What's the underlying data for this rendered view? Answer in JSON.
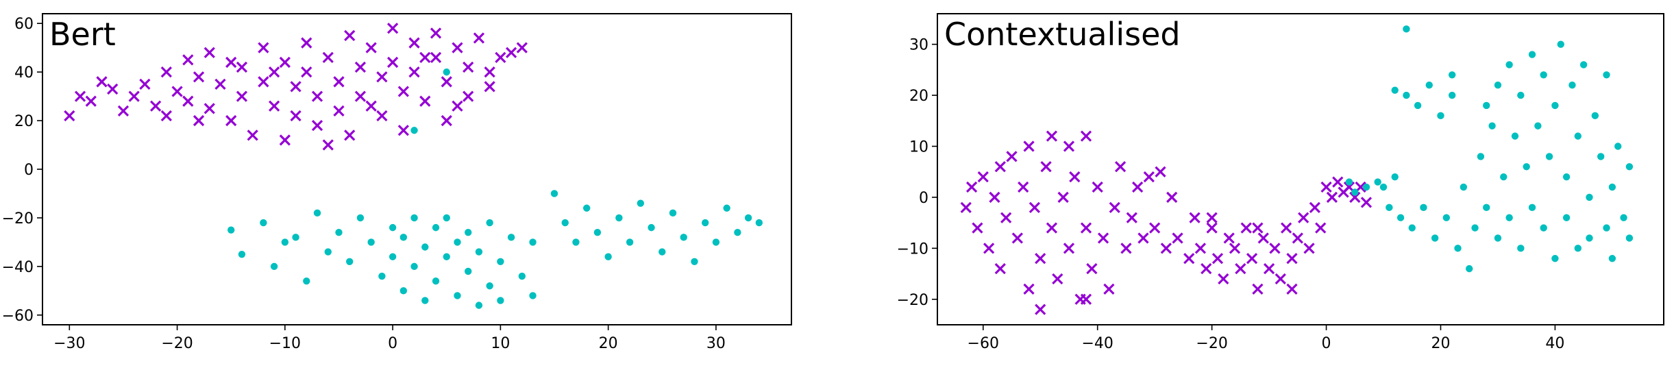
{
  "colors": {
    "class_a": "#9400D3",
    "class_b": "#00BFBF"
  },
  "chart_data": [
    {
      "type": "scatter",
      "title": "Bert",
      "xlabel": "",
      "ylabel": "",
      "xlim": [
        -32.5,
        37
      ],
      "ylim": [
        -64,
        64
      ],
      "xticks": [
        -30,
        -20,
        -10,
        0,
        10,
        20,
        30
      ],
      "yticks": [
        -60,
        -40,
        -20,
        0,
        20,
        40,
        60
      ],
      "xtick_labels": [
        "−30",
        "−20",
        "−10",
        "0",
        "10",
        "20",
        "30"
      ],
      "ytick_labels": [
        "−60",
        "−40",
        "−20",
        "0",
        "20",
        "40",
        "60"
      ],
      "legend": "none",
      "grid": false,
      "series": [
        {
          "marker": "x",
          "color": "#9400D3",
          "points": [
            [
              -30,
              22
            ],
            [
              -29,
              30
            ],
            [
              -28,
              28
            ],
            [
              -27,
              36
            ],
            [
              -25,
              24
            ],
            [
              -24,
              30
            ],
            [
              -23,
              35
            ],
            [
              -22,
              26
            ],
            [
              -21,
              40
            ],
            [
              -21,
              22
            ],
            [
              -20,
              32
            ],
            [
              -19,
              45
            ],
            [
              -19,
              28
            ],
            [
              -18,
              38
            ],
            [
              -17,
              48
            ],
            [
              -17,
              25
            ],
            [
              -16,
              35
            ],
            [
              -15,
              20
            ],
            [
              -14,
              42
            ],
            [
              -14,
              30
            ],
            [
              -13,
              14
            ],
            [
              -12,
              50
            ],
            [
              -12,
              36
            ],
            [
              -11,
              26
            ],
            [
              -10,
              44
            ],
            [
              -10,
              12
            ],
            [
              -9,
              34
            ],
            [
              -9,
              22
            ],
            [
              -8,
              52
            ],
            [
              -8,
              40
            ],
            [
              -7,
              30
            ],
            [
              -7,
              18
            ],
            [
              -6,
              46
            ],
            [
              -5,
              36
            ],
            [
              -5,
              24
            ],
            [
              -4,
              55
            ],
            [
              -4,
              14
            ],
            [
              -3,
              42
            ],
            [
              -3,
              30
            ],
            [
              -2,
              50
            ],
            [
              -1,
              38
            ],
            [
              -1,
              22
            ],
            [
              0,
              58
            ],
            [
              0,
              44
            ],
            [
              1,
              32
            ],
            [
              1,
              16
            ],
            [
              2,
              52
            ],
            [
              2,
              40
            ],
            [
              3,
              28
            ],
            [
              4,
              56
            ],
            [
              4,
              46
            ],
            [
              5,
              36
            ],
            [
              5,
              20
            ],
            [
              6,
              50
            ],
            [
              7,
              42
            ],
            [
              7,
              30
            ],
            [
              8,
              54
            ],
            [
              9,
              40
            ],
            [
              10,
              46
            ],
            [
              11,
              48
            ],
            [
              12,
              50
            ],
            [
              -26,
              33
            ],
            [
              -18,
              20
            ],
            [
              -11,
              40
            ],
            [
              -2,
              26
            ],
            [
              3,
              46
            ],
            [
              6,
              26
            ],
            [
              9,
              34
            ],
            [
              -15,
              44
            ],
            [
              -6,
              10
            ]
          ]
        },
        {
          "marker": "o",
          "color": "#00BFBF",
          "points": [
            [
              -15,
              -25
            ],
            [
              -14,
              -35
            ],
            [
              -12,
              -22
            ],
            [
              -11,
              -40
            ],
            [
              -10,
              -30
            ],
            [
              -9,
              -28
            ],
            [
              -8,
              -46
            ],
            [
              -7,
              -18
            ],
            [
              -6,
              -34
            ],
            [
              -5,
              -26
            ],
            [
              -4,
              -38
            ],
            [
              -3,
              -20
            ],
            [
              -2,
              -30
            ],
            [
              -1,
              -44
            ],
            [
              0,
              -24
            ],
            [
              0,
              -36
            ],
            [
              1,
              -50
            ],
            [
              1,
              -28
            ],
            [
              2,
              -20
            ],
            [
              2,
              -40
            ],
            [
              3,
              -32
            ],
            [
              3,
              -54
            ],
            [
              4,
              -24
            ],
            [
              4,
              -46
            ],
            [
              5,
              -36
            ],
            [
              5,
              -20
            ],
            [
              6,
              -30
            ],
            [
              6,
              -52
            ],
            [
              7,
              -42
            ],
            [
              7,
              -26
            ],
            [
              8,
              -56
            ],
            [
              8,
              -34
            ],
            [
              9,
              -48
            ],
            [
              9,
              -22
            ],
            [
              10,
              -38
            ],
            [
              10,
              -54
            ],
            [
              11,
              -28
            ],
            [
              12,
              -44
            ],
            [
              13,
              -30
            ],
            [
              13,
              -52
            ],
            [
              15,
              -10
            ],
            [
              16,
              -22
            ],
            [
              17,
              -30
            ],
            [
              18,
              -16
            ],
            [
              19,
              -26
            ],
            [
              20,
              -36
            ],
            [
              21,
              -20
            ],
            [
              22,
              -30
            ],
            [
              23,
              -14
            ],
            [
              24,
              -24
            ],
            [
              25,
              -34
            ],
            [
              26,
              -18
            ],
            [
              27,
              -28
            ],
            [
              28,
              -38
            ],
            [
              29,
              -22
            ],
            [
              30,
              -30
            ],
            [
              31,
              -16
            ],
            [
              32,
              -26
            ],
            [
              33,
              -20
            ],
            [
              34,
              -22
            ],
            [
              2,
              16
            ],
            [
              5,
              40
            ]
          ]
        }
      ]
    },
    {
      "type": "scatter",
      "title": "Contextualised",
      "xlabel": "",
      "ylabel": "",
      "xlim": [
        -68,
        59
      ],
      "ylim": [
        -25,
        36
      ],
      "xticks": [
        -60,
        -40,
        -20,
        0,
        20,
        40
      ],
      "yticks": [
        -20,
        -10,
        0,
        10,
        20,
        30
      ],
      "xtick_labels": [
        "−60",
        "−40",
        "−20",
        "0",
        "20",
        "40"
      ],
      "ytick_labels": [
        "−20",
        "−10",
        "0",
        "10",
        "20",
        "30"
      ],
      "legend": "none",
      "grid": false,
      "series": [
        {
          "marker": "x",
          "color": "#9400D3",
          "points": [
            [
              -63,
              -2
            ],
            [
              -62,
              2
            ],
            [
              -61,
              -6
            ],
            [
              -60,
              4
            ],
            [
              -59,
              -10
            ],
            [
              -58,
              0
            ],
            [
              -57,
              -14
            ],
            [
              -57,
              6
            ],
            [
              -56,
              -4
            ],
            [
              -55,
              8
            ],
            [
              -54,
              -8
            ],
            [
              -53,
              2
            ],
            [
              -52,
              -18
            ],
            [
              -52,
              10
            ],
            [
              -51,
              -2
            ],
            [
              -50,
              -12
            ],
            [
              -49,
              6
            ],
            [
              -48,
              -6
            ],
            [
              -48,
              12
            ],
            [
              -47,
              -16
            ],
            [
              -46,
              0
            ],
            [
              -45,
              -10
            ],
            [
              -44,
              4
            ],
            [
              -43,
              -20
            ],
            [
              -42,
              -6
            ],
            [
              -42,
              12
            ],
            [
              -41,
              -14
            ],
            [
              -40,
              2
            ],
            [
              -39,
              -8
            ],
            [
              -38,
              -18
            ],
            [
              -37,
              -2
            ],
            [
              -36,
              6
            ],
            [
              -35,
              -10
            ],
            [
              -34,
              -4
            ],
            [
              -33,
              2
            ],
            [
              -32,
              -8
            ],
            [
              -31,
              4
            ],
            [
              -30,
              -6
            ],
            [
              -28,
              -10
            ],
            [
              -27,
              0
            ],
            [
              -26,
              -8
            ],
            [
              -24,
              -12
            ],
            [
              -23,
              -4
            ],
            [
              -22,
              -10
            ],
            [
              -21,
              -14
            ],
            [
              -20,
              -6
            ],
            [
              -19,
              -12
            ],
            [
              -18,
              -16
            ],
            [
              -17,
              -8
            ],
            [
              -16,
              -10
            ],
            [
              -15,
              -14
            ],
            [
              -14,
              -6
            ],
            [
              -13,
              -12
            ],
            [
              -12,
              -18
            ],
            [
              -11,
              -8
            ],
            [
              -10,
              -14
            ],
            [
              -9,
              -10
            ],
            [
              -8,
              -16
            ],
            [
              -7,
              -6
            ],
            [
              -6,
              -12
            ],
            [
              -5,
              -8
            ],
            [
              -4,
              -4
            ],
            [
              -3,
              -10
            ],
            [
              -2,
              -2
            ],
            [
              -1,
              -6
            ],
            [
              0,
              2
            ],
            [
              1,
              0
            ],
            [
              2,
              3
            ],
            [
              3,
              1
            ],
            [
              4,
              2
            ],
            [
              5,
              0
            ],
            [
              6,
              2
            ],
            [
              7,
              -1
            ],
            [
              -50,
              -22
            ],
            [
              -45,
              10
            ],
            [
              -42,
              -20
            ],
            [
              -29,
              5
            ],
            [
              -20,
              -4
            ],
            [
              -12,
              -6
            ],
            [
              -6,
              -18
            ]
          ]
        },
        {
          "marker": "o",
          "color": "#00BFBF",
          "points": [
            [
              4,
              3
            ],
            [
              5,
              1
            ],
            [
              7,
              2
            ],
            [
              9,
              3
            ],
            [
              10,
              2
            ],
            [
              11,
              -2
            ],
            [
              12,
              21
            ],
            [
              13,
              -4
            ],
            [
              14,
              33
            ],
            [
              14,
              20
            ],
            [
              15,
              -6
            ],
            [
              16,
              18
            ],
            [
              17,
              -2
            ],
            [
              18,
              22
            ],
            [
              19,
              -8
            ],
            [
              20,
              16
            ],
            [
              21,
              -4
            ],
            [
              22,
              24
            ],
            [
              23,
              -10
            ],
            [
              24,
              2
            ],
            [
              25,
              -14
            ],
            [
              26,
              -6
            ],
            [
              27,
              8
            ],
            [
              28,
              -2
            ],
            [
              29,
              14
            ],
            [
              30,
              -8
            ],
            [
              30,
              22
            ],
            [
              31,
              4
            ],
            [
              32,
              -4
            ],
            [
              32,
              26
            ],
            [
              33,
              12
            ],
            [
              34,
              -10
            ],
            [
              34,
              20
            ],
            [
              35,
              6
            ],
            [
              36,
              -2
            ],
            [
              36,
              28
            ],
            [
              37,
              14
            ],
            [
              38,
              -6
            ],
            [
              38,
              24
            ],
            [
              39,
              8
            ],
            [
              40,
              -12
            ],
            [
              40,
              18
            ],
            [
              41,
              30
            ],
            [
              42,
              4
            ],
            [
              42,
              -4
            ],
            [
              43,
              22
            ],
            [
              44,
              12
            ],
            [
              44,
              -10
            ],
            [
              45,
              26
            ],
            [
              46,
              0
            ],
            [
              46,
              -8
            ],
            [
              47,
              16
            ],
            [
              48,
              8
            ],
            [
              49,
              -6
            ],
            [
              49,
              24
            ],
            [
              50,
              2
            ],
            [
              50,
              -12
            ],
            [
              51,
              10
            ],
            [
              52,
              -4
            ],
            [
              53,
              6
            ],
            [
              53,
              -8
            ],
            [
              22,
              20
            ],
            [
              28,
              18
            ],
            [
              12,
              4
            ]
          ]
        }
      ]
    }
  ]
}
